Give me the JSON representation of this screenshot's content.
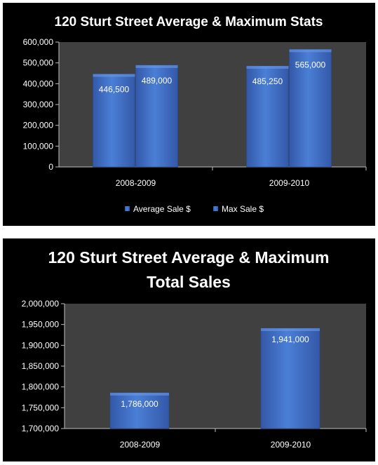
{
  "chart_data": [
    {
      "type": "bar",
      "title": "120 Sturt Street Average & Maximum Stats",
      "categories": [
        "2008-2009",
        "2009-2010"
      ],
      "series": [
        {
          "name": "Average Sale $",
          "values": [
            446500,
            485250
          ],
          "labels": [
            "446,500",
            "485,250"
          ]
        },
        {
          "name": "Max Sale $",
          "values": [
            489000,
            565000
          ],
          "labels": [
            "489,000",
            "565,000"
          ]
        }
      ],
      "ylim": [
        0,
        600000
      ],
      "yticks": [
        "0",
        "100,000",
        "200,000",
        "300,000",
        "400,000",
        "500,000",
        "600,000"
      ],
      "legend": "bottom",
      "grid": false,
      "colors": {
        "plot_bg": "#404040",
        "bar_dark": "#3458a8",
        "bar_light": "#4a7fd6",
        "text": "#ffffff"
      }
    },
    {
      "type": "bar",
      "title": "120 Sturt Street Average & Maximum Total Sales",
      "title_lines": [
        "120 Sturt Street Average & Maximum",
        "Total Sales"
      ],
      "categories": [
        "2008-2009",
        "2009-2010"
      ],
      "series": [
        {
          "values": [
            1786000,
            1941000
          ],
          "labels": [
            "1,786,000",
            "1,941,000"
          ]
        }
      ],
      "ylim": [
        1700000,
        2000000
      ],
      "yticks": [
        "1,700,000",
        "1,750,000",
        "1,800,000",
        "1,850,000",
        "1,900,000",
        "1,950,000",
        "2,000,000"
      ],
      "grid": false,
      "colors": {
        "plot_bg": "#404040",
        "bar_dark": "#3458a8",
        "bar_light": "#4a7fd6",
        "text": "#ffffff"
      }
    }
  ]
}
